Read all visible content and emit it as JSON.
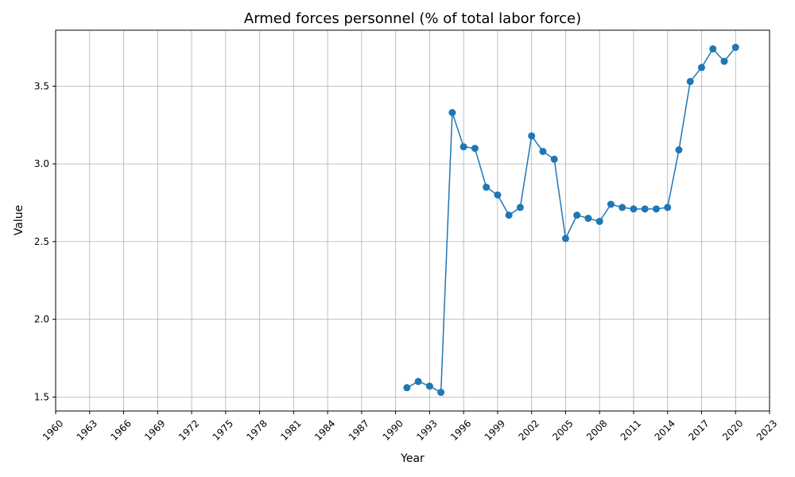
{
  "chart_data": {
    "type": "line",
    "title": "Armed forces personnel (% of total labor force)",
    "xlabel": "Year",
    "ylabel": "Value",
    "xlim": [
      1960,
      2023
    ],
    "ylim": [
      1.41,
      3.86
    ],
    "x_ticks": [
      1960,
      1963,
      1966,
      1969,
      1972,
      1975,
      1978,
      1981,
      1984,
      1987,
      1990,
      1993,
      1996,
      1999,
      2002,
      2005,
      2008,
      2011,
      2014,
      2017,
      2020,
      2023
    ],
    "y_ticks": [
      1.5,
      2.0,
      2.5,
      3.0,
      3.5
    ],
    "y_tick_labels": [
      "1.5",
      "2.0",
      "2.5",
      "3.0",
      "3.5"
    ],
    "grid": true,
    "series_color": "#1f77b4",
    "x": [
      1991,
      1992,
      1993,
      1994,
      1995,
      1996,
      1997,
      1998,
      1999,
      2000,
      2001,
      2002,
      2003,
      2004,
      2005,
      2006,
      2007,
      2008,
      2009,
      2010,
      2011,
      2012,
      2013,
      2014,
      2015,
      2016,
      2017,
      2018,
      2019,
      2020
    ],
    "y": [
      1.56,
      1.6,
      1.57,
      1.53,
      3.33,
      3.11,
      3.1,
      2.85,
      2.8,
      2.67,
      2.72,
      3.18,
      3.08,
      3.03,
      2.52,
      2.67,
      2.65,
      2.63,
      2.74,
      2.72,
      2.71,
      2.71,
      2.71,
      2.72,
      3.09,
      3.53,
      3.62,
      3.74,
      3.66,
      3.75
    ]
  }
}
